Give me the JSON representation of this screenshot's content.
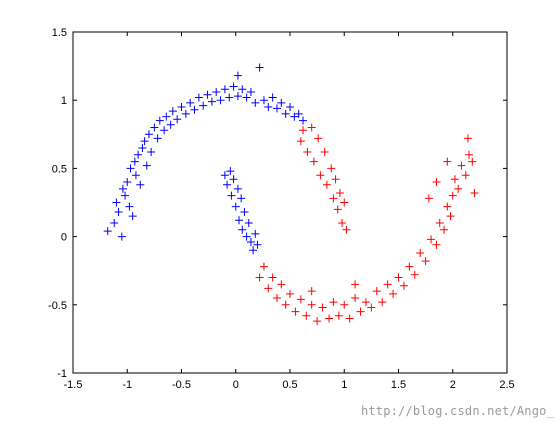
{
  "chart_data": {
    "type": "scatter",
    "marker": "+",
    "title": "",
    "xlabel": "",
    "ylabel": "",
    "xlim": [
      -1.5,
      2.5
    ],
    "ylim": [
      -1,
      1.5
    ],
    "xticks": [
      -1.5,
      -1,
      -0.5,
      0,
      0.5,
      1,
      1.5,
      2,
      2.5
    ],
    "yticks": [
      -1,
      -0.5,
      0,
      0.5,
      1,
      1.5
    ],
    "xtick_labels": [
      "-1.5",
      "-1",
      "-0.5",
      "0",
      "0.5",
      "1",
      "1.5",
      "2",
      "2.5"
    ],
    "ytick_labels": [
      "-1",
      "-0.5",
      "0",
      "0.5",
      "1",
      "1.5"
    ],
    "grid": false,
    "legend": "none",
    "series": [
      {
        "color": "#0000ff",
        "points": [
          [
            -1.18,
            0.04
          ],
          [
            -1.12,
            0.1
          ],
          [
            -1.1,
            0.25
          ],
          [
            -1.08,
            0.18
          ],
          [
            -1.05,
            0.0
          ],
          [
            -1.04,
            0.35
          ],
          [
            -1.02,
            0.3
          ],
          [
            -1.0,
            0.4
          ],
          [
            -0.98,
            0.22
          ],
          [
            -0.97,
            0.5
          ],
          [
            -0.95,
            0.15
          ],
          [
            -0.93,
            0.55
          ],
          [
            -0.92,
            0.45
          ],
          [
            -0.9,
            0.6
          ],
          [
            -0.88,
            0.38
          ],
          [
            -0.86,
            0.65
          ],
          [
            -0.84,
            0.7
          ],
          [
            -0.82,
            0.52
          ],
          [
            -0.8,
            0.75
          ],
          [
            -0.78,
            0.62
          ],
          [
            -0.75,
            0.8
          ],
          [
            -0.72,
            0.72
          ],
          [
            -0.7,
            0.85
          ],
          [
            -0.66,
            0.78
          ],
          [
            -0.64,
            0.88
          ],
          [
            -0.6,
            0.82
          ],
          [
            -0.58,
            0.92
          ],
          [
            -0.54,
            0.86
          ],
          [
            -0.5,
            0.95
          ],
          [
            -0.46,
            0.9
          ],
          [
            -0.42,
            0.98
          ],
          [
            -0.38,
            0.93
          ],
          [
            -0.34,
            1.02
          ],
          [
            -0.3,
            0.96
          ],
          [
            -0.26,
            1.04
          ],
          [
            -0.22,
            0.99
          ],
          [
            -0.18,
            1.06
          ],
          [
            -0.14,
            1.0
          ],
          [
            -0.1,
            1.08
          ],
          [
            -0.06,
            1.02
          ],
          [
            -0.02,
            1.1
          ],
          [
            0.02,
            1.03
          ],
          [
            0.02,
            1.18
          ],
          [
            0.06,
            1.08
          ],
          [
            0.1,
            1.02
          ],
          [
            0.14,
            1.06
          ],
          [
            0.18,
            0.98
          ],
          [
            0.22,
            1.24
          ],
          [
            0.26,
            1.0
          ],
          [
            0.3,
            0.95
          ],
          [
            0.34,
            1.02
          ],
          [
            0.38,
            0.94
          ],
          [
            0.42,
            0.98
          ],
          [
            0.46,
            0.9
          ],
          [
            0.5,
            0.95
          ],
          [
            0.54,
            0.88
          ],
          [
            0.58,
            0.9
          ],
          [
            0.62,
            0.85
          ],
          [
            -0.1,
            0.45
          ],
          [
            -0.08,
            0.38
          ],
          [
            -0.05,
            0.48
          ],
          [
            -0.04,
            0.3
          ],
          [
            -0.02,
            0.42
          ],
          [
            0.0,
            0.22
          ],
          [
            0.02,
            0.35
          ],
          [
            0.03,
            0.12
          ],
          [
            0.05,
            0.28
          ],
          [
            0.06,
            0.05
          ],
          [
            0.08,
            0.18
          ],
          [
            0.1,
            0.0
          ],
          [
            0.12,
            0.1
          ],
          [
            0.14,
            -0.04
          ],
          [
            0.16,
            -0.1
          ],
          [
            0.18,
            0.02
          ],
          [
            0.2,
            -0.06
          ]
        ]
      },
      {
        "color": "#ff0000",
        "points": [
          [
            0.6,
            0.7
          ],
          [
            0.62,
            0.78
          ],
          [
            0.66,
            0.62
          ],
          [
            0.7,
            0.8
          ],
          [
            0.72,
            0.55
          ],
          [
            0.76,
            0.72
          ],
          [
            0.78,
            0.45
          ],
          [
            0.82,
            0.62
          ],
          [
            0.84,
            0.38
          ],
          [
            0.88,
            0.5
          ],
          [
            0.9,
            0.28
          ],
          [
            0.92,
            0.42
          ],
          [
            0.94,
            0.2
          ],
          [
            0.96,
            0.32
          ],
          [
            0.98,
            0.1
          ],
          [
            1.0,
            0.25
          ],
          [
            1.02,
            0.05
          ],
          [
            0.22,
            -0.3
          ],
          [
            0.26,
            -0.22
          ],
          [
            0.3,
            -0.38
          ],
          [
            0.34,
            -0.3
          ],
          [
            0.38,
            -0.45
          ],
          [
            0.42,
            -0.35
          ],
          [
            0.46,
            -0.5
          ],
          [
            0.5,
            -0.42
          ],
          [
            0.55,
            -0.55
          ],
          [
            0.6,
            -0.46
          ],
          [
            0.65,
            -0.58
          ],
          [
            0.7,
            -0.5
          ],
          [
            0.75,
            -0.62
          ],
          [
            0.8,
            -0.52
          ],
          [
            0.86,
            -0.6
          ],
          [
            0.9,
            -0.48
          ],
          [
            0.95,
            -0.58
          ],
          [
            1.0,
            -0.5
          ],
          [
            1.05,
            -0.6
          ],
          [
            1.1,
            -0.45
          ],
          [
            1.15,
            -0.55
          ],
          [
            1.2,
            -0.48
          ],
          [
            1.25,
            -0.52
          ],
          [
            1.3,
            -0.4
          ],
          [
            1.35,
            -0.48
          ],
          [
            1.4,
            -0.35
          ],
          [
            1.45,
            -0.42
          ],
          [
            1.5,
            -0.3
          ],
          [
            1.55,
            -0.36
          ],
          [
            1.6,
            -0.22
          ],
          [
            1.65,
            -0.28
          ],
          [
            1.7,
            -0.12
          ],
          [
            1.75,
            -0.18
          ],
          [
            1.8,
            -0.02
          ],
          [
            1.85,
            -0.06
          ],
          [
            1.88,
            0.1
          ],
          [
            1.92,
            0.05
          ],
          [
            1.95,
            0.22
          ],
          [
            1.98,
            0.15
          ],
          [
            2.0,
            0.3
          ],
          [
            2.02,
            0.42
          ],
          [
            2.05,
            0.35
          ],
          [
            2.08,
            0.52
          ],
          [
            2.12,
            0.45
          ],
          [
            2.15,
            0.6
          ],
          [
            2.18,
            0.55
          ],
          [
            2.2,
            0.32
          ],
          [
            2.14,
            0.72
          ],
          [
            1.95,
            0.55
          ],
          [
            1.85,
            0.4
          ],
          [
            1.78,
            0.28
          ],
          [
            0.7,
            -0.4
          ],
          [
            1.1,
            -0.35
          ]
        ]
      }
    ]
  },
  "watermark": "http://blog.csdn.net/Ango_"
}
